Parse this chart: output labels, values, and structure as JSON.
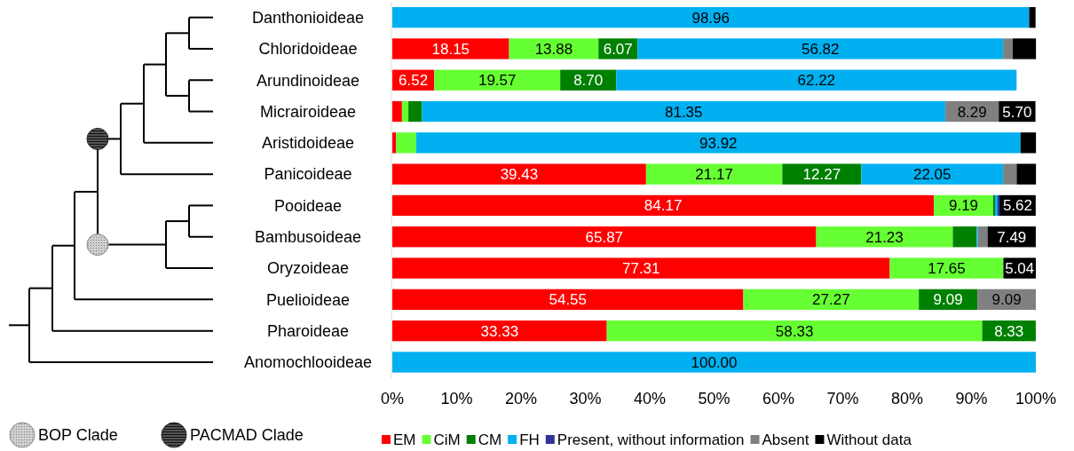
{
  "chart_data": {
    "type": "bar",
    "orientation": "horizontal",
    "stacked": true,
    "categories": [
      "Danthonioideae",
      "Chloridoideae",
      "Arundinoideae",
      "Micrairoideae",
      "Aristidoideae",
      "Panicoideae",
      "Pooideae",
      "Bambusoideae",
      "Oryzoideae",
      "Puelioideae",
      "Pharoideae",
      "Anomochlooideae"
    ],
    "series": [
      {
        "name": "EM",
        "color": "#ff0000",
        "values": [
          0,
          18.15,
          6.52,
          1.5,
          0.6,
          39.43,
          84.17,
          65.87,
          77.31,
          54.55,
          33.33,
          0
        ],
        "value_labels": [
          null,
          "18.15",
          "6.52",
          null,
          null,
          "39.43",
          "84.17",
          "65.87",
          "77.31",
          "54.55",
          "33.33",
          null
        ]
      },
      {
        "name": "CiM",
        "color": "#66ff33",
        "values": [
          0,
          13.88,
          19.57,
          1.0,
          3.1,
          21.17,
          9.19,
          21.23,
          17.65,
          27.27,
          58.33,
          0
        ],
        "value_labels": [
          null,
          "13.88",
          "19.57",
          null,
          null,
          "21.17",
          "9.19",
          "21.23",
          "17.65",
          "27.27",
          "58.33",
          null
        ]
      },
      {
        "name": "CM",
        "color": "#008000",
        "values": [
          0,
          6.07,
          8.7,
          2.1,
          0,
          12.27,
          0.3,
          3.7,
          0,
          9.09,
          8.33,
          0
        ],
        "value_labels": [
          null,
          "6.07",
          "8.70",
          null,
          null,
          "12.27",
          null,
          null,
          null,
          "9.09",
          "8.33",
          null
        ]
      },
      {
        "name": "FH",
        "color": "#00b0f0",
        "values": [
          98.96,
          56.82,
          62.22,
          81.35,
          93.92,
          22.05,
          0.4,
          0.2,
          0,
          0,
          0,
          100.0
        ],
        "value_labels": [
          "98.96",
          "56.82",
          "62.22",
          "81.35",
          "93.92",
          "22.05",
          null,
          null,
          null,
          null,
          null,
          "100.00"
        ]
      },
      {
        "name": "Present, without information",
        "color": "#333399",
        "values": [
          0,
          0,
          0,
          0,
          0,
          0,
          0.3,
          0,
          0,
          0,
          0,
          0
        ],
        "value_labels": [
          null,
          null,
          null,
          null,
          null,
          null,
          null,
          null,
          null,
          null,
          null,
          null
        ]
      },
      {
        "name": "Absent",
        "color": "#808080",
        "values": [
          0,
          1.5,
          0,
          8.29,
          0,
          2.1,
          0,
          1.5,
          0,
          9.09,
          0,
          0
        ],
        "value_labels": [
          null,
          null,
          null,
          "8.29",
          null,
          null,
          null,
          null,
          null,
          "9.09",
          null,
          null
        ]
      },
      {
        "name": "Without data",
        "color": "#000000",
        "values": [
          1.0,
          3.6,
          0,
          5.7,
          2.4,
          3.0,
          5.62,
          7.49,
          5.04,
          0,
          0,
          0
        ],
        "value_labels": [
          null,
          null,
          null,
          "5.70",
          null,
          null,
          "5.62",
          "7.49",
          "5.04",
          null,
          null,
          null
        ]
      }
    ],
    "xlim": [
      0,
      100
    ],
    "xticks": [
      {
        "value": 0,
        "label": "0%"
      },
      {
        "value": 10,
        "label": "10%"
      },
      {
        "value": 20,
        "label": "20%"
      },
      {
        "value": 30,
        "label": "30%"
      },
      {
        "value": 40,
        "label": "40%"
      },
      {
        "value": 50,
        "label": "50%"
      },
      {
        "value": 60,
        "label": "60%"
      },
      {
        "value": 70,
        "label": "70%"
      },
      {
        "value": 80,
        "label": "80%"
      },
      {
        "value": 90,
        "label": "90%"
      },
      {
        "value": 100,
        "label": "100%"
      }
    ],
    "legend": "bottom",
    "annotations": [
      "BOP Clade",
      "PACMAD Clade"
    ]
  }
}
